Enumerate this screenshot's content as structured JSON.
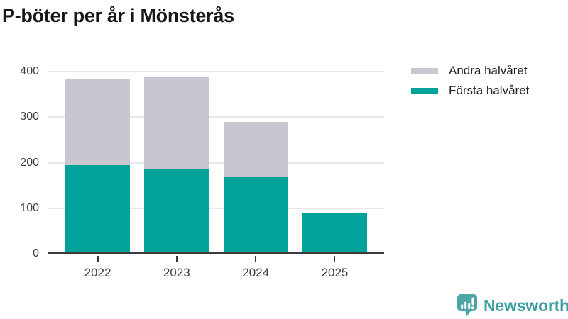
{
  "chart_data": {
    "type": "bar",
    "stacked": true,
    "title": "P-böter per år i Mönsterås",
    "categories": [
      "2022",
      "2023",
      "2024",
      "2025"
    ],
    "series": [
      {
        "name": "Första halvåret",
        "color": "#00a39a",
        "values": [
          195,
          185,
          170,
          90
        ]
      },
      {
        "name": "Andra halvåret",
        "color": "#c8c6ce",
        "values": [
          190,
          202,
          120,
          0
        ]
      }
    ],
    "totals": [
      385,
      387,
      290,
      90
    ],
    "xlabel": "",
    "ylabel": "",
    "ylim": [
      0,
      400
    ],
    "yticks": [
      0,
      100,
      200,
      300,
      400
    ],
    "grid": true,
    "legend": {
      "position": "top-right",
      "entries": [
        {
          "label": "Andra halvåret",
          "color": "#c8c6ce"
        },
        {
          "label": "Första halvåret",
          "color": "#00a39a"
        }
      ]
    }
  },
  "style_colors": {
    "axis": "#3b3b3b",
    "gridline": "#e8e8e8",
    "tick_label": "#3d3d3d",
    "title": "#171717",
    "brand": "#3e9fa0"
  },
  "branding": {
    "logo_text": "Newsworthy",
    "logo_icon": "newsworthy-speech-bubble-bar-chart-icon"
  }
}
